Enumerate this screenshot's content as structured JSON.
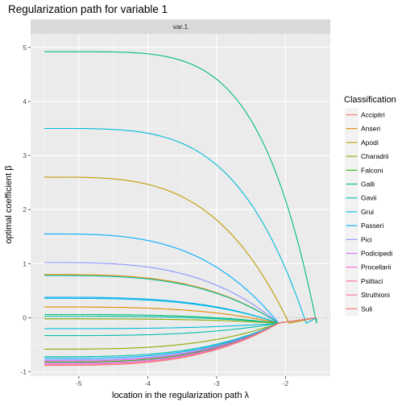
{
  "chart_data": {
    "type": "line",
    "title": "Regularization path for variable 1",
    "facet_label": "var.1",
    "xlabel": "location in the regularization path  λ",
    "ylabel": "optimal coefficient  β",
    "xlim": [
      -5.7,
      -1.35
    ],
    "ylim": [
      -1.08,
      5.25
    ],
    "x_ticks": [
      -5,
      -4,
      -3,
      -2
    ],
    "y_ticks": [
      -1,
      0,
      1,
      2,
      3,
      4,
      5
    ],
    "zero_line": true,
    "legend": {
      "title": "Classification",
      "position": "right",
      "entries": [
        {
          "name": "Accipitri",
          "color": "#F8766D"
        },
        {
          "name": "Anseri",
          "color": "#E18A00"
        },
        {
          "name": "Apodi",
          "color": "#BE9C00"
        },
        {
          "name": "Charadrii",
          "color": "#8CAB00"
        },
        {
          "name": "Falconi",
          "color": "#24B700"
        },
        {
          "name": "Galli",
          "color": "#00BE70"
        },
        {
          "name": "Gavii",
          "color": "#00C1AB"
        },
        {
          "name": "Grui",
          "color": "#00BBDA"
        },
        {
          "name": "Passeri",
          "color": "#00ACFC"
        },
        {
          "name": "Pici",
          "color": "#8B93FF"
        },
        {
          "name": "Podicipedi",
          "color": "#D575FE"
        },
        {
          "name": "Procellarii",
          "color": "#F962DD"
        },
        {
          "name": "Psittaci",
          "color": "#FF65AC"
        },
        {
          "name": "Struthioni",
          "color": "#FF6C91"
        },
        {
          "name": "Suli",
          "color": "#F8766D"
        }
      ]
    },
    "series": [
      {
        "start": 4.92,
        "end": -1.55,
        "color": "#00BE70",
        "k": 5.0
      },
      {
        "start": 3.5,
        "end": -1.7,
        "color": "#00BBDA",
        "k": 4.0
      },
      {
        "start": 2.6,
        "end": -1.95,
        "color": "#BE9C00",
        "k": 3.5
      },
      {
        "start": 1.55,
        "end": -2.1,
        "color": "#00ACFC",
        "k": 3.2
      },
      {
        "start": 1.02,
        "end": -2.1,
        "color": "#8B93FF",
        "k": 3.2
      },
      {
        "start": 0.8,
        "end": -2.1,
        "color": "#E18A00",
        "k": 3.2
      },
      {
        "start": 0.78,
        "end": -2.1,
        "color": "#00C1AB",
        "k": 3.2
      },
      {
        "start": 0.38,
        "end": -2.1,
        "color": "#00ACFC",
        "k": 3.2
      },
      {
        "start": 0.36,
        "end": -2.1,
        "color": "#00BBDA",
        "k": 3.2
      },
      {
        "start": 0.2,
        "end": -2.1,
        "color": "#E18A00",
        "k": 3.2
      },
      {
        "start": 0.06,
        "end": -2.1,
        "color": "#00BE70",
        "k": 3.2
      },
      {
        "start": 0.03,
        "end": -2.1,
        "color": "#00C1AB",
        "k": 3.2
      },
      {
        "start": -0.02,
        "end": -2.1,
        "color": "#8CAB00",
        "k": 3.2
      },
      {
        "start": -0.2,
        "end": -2.1,
        "color": "#00BBDA",
        "k": 3.2
      },
      {
        "start": -0.33,
        "end": -2.1,
        "color": "#00C1AB",
        "k": 3.2
      },
      {
        "start": -0.58,
        "end": -2.1,
        "color": "#8CAB00",
        "k": 3.2
      },
      {
        "start": -0.72,
        "end": -2.1,
        "color": "#00C1AB",
        "k": 3.2
      },
      {
        "start": -0.75,
        "end": -2.1,
        "color": "#00ACFC",
        "k": 3.2
      },
      {
        "start": -0.78,
        "end": -2.1,
        "color": "#8B93FF",
        "k": 3.2
      },
      {
        "start": -0.8,
        "end": -2.1,
        "color": "#F962DD",
        "k": 3.2
      },
      {
        "start": -0.82,
        "end": -2.1,
        "color": "#24B700",
        "k": 3.2
      },
      {
        "start": -0.84,
        "end": -2.1,
        "color": "#D575FE",
        "k": 3.2
      },
      {
        "start": -0.86,
        "end": -2.1,
        "color": "#FF65AC",
        "k": 3.2
      },
      {
        "start": -0.88,
        "end": -2.1,
        "color": "#F8766D",
        "k": 3.2
      }
    ]
  }
}
